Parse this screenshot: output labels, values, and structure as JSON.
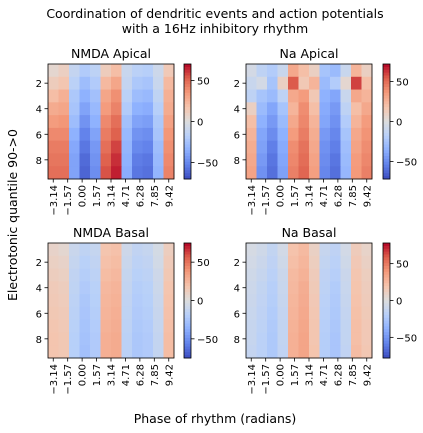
{
  "figure": {
    "suptitle_line1": "Coordination of dendritic events and action potentials",
    "suptitle_line2": "with a 16Hz inhibitory rhythm",
    "ylabel": "Electrotonic quantile 90->0",
    "xlabel": "Phase of rhythm (radians)"
  },
  "chart_data": [
    {
      "type": "heatmap",
      "title": "NMDA Apical",
      "colormap": "coolwarm",
      "x_tick_labels": [
        "−3.14",
        "−1.57",
        "0.00",
        "1.57",
        "3.14",
        "4.71",
        "6.28",
        "7.85",
        "9.42"
      ],
      "y_tick_labels": [
        "2",
        "4",
        "6",
        "8"
      ],
      "y_tick_rows": [
        1,
        3,
        5,
        7
      ],
      "colorbar_ticks": [
        50,
        0,
        -50
      ],
      "colorbar_tick_labels": [
        "50",
        "0",
        "−50"
      ],
      "vmin": -70,
      "vmax": 70,
      "rows": 9,
      "cols": 12,
      "values": [
        [
          5,
          10,
          -12,
          -20,
          -15,
          12,
          20,
          -10,
          -16,
          -18,
          -8,
          14
        ],
        [
          12,
          16,
          -16,
          -28,
          -20,
          22,
          30,
          -12,
          -22,
          -24,
          -10,
          22
        ],
        [
          20,
          26,
          -22,
          -34,
          -26,
          30,
          38,
          -16,
          -28,
          -30,
          -14,
          26
        ],
        [
          28,
          30,
          -24,
          -40,
          -30,
          34,
          42,
          -20,
          -34,
          -36,
          -18,
          28
        ],
        [
          34,
          36,
          -28,
          -46,
          -34,
          40,
          48,
          -26,
          -40,
          -42,
          -22,
          32
        ],
        [
          40,
          40,
          -34,
          -52,
          -40,
          44,
          52,
          -30,
          -46,
          -48,
          -24,
          36
        ],
        [
          44,
          44,
          -38,
          -56,
          -44,
          48,
          58,
          -32,
          -50,
          -52,
          -28,
          38
        ],
        [
          46,
          46,
          -40,
          -60,
          -46,
          52,
          62,
          -34,
          -54,
          -56,
          -30,
          40
        ],
        [
          48,
          48,
          -40,
          -62,
          -48,
          55,
          65,
          -36,
          -56,
          -58,
          -32,
          42
        ]
      ]
    },
    {
      "type": "heatmap",
      "title": "Na Apical",
      "colormap": "coolwarm",
      "x_tick_labels": [
        "−3.14",
        "−1.57",
        "0.00",
        "1.57",
        "3.14",
        "4.71",
        "6.28",
        "7.85",
        "9.42"
      ],
      "y_tick_labels": [
        "2",
        "4",
        "6",
        "8"
      ],
      "y_tick_rows": [
        1,
        3,
        5,
        7
      ],
      "colorbar_ticks": [
        50,
        0,
        -50
      ],
      "colorbar_tick_labels": [
        "50",
        "0",
        "−50"
      ],
      "vmin": -72,
      "vmax": 72,
      "rows": 9,
      "cols": 12,
      "values": [
        [
          -5,
          -15,
          -20,
          -10,
          30,
          20,
          10,
          -25,
          -30,
          -10,
          25,
          10
        ],
        [
          -10,
          -5,
          -25,
          10,
          55,
          15,
          25,
          -30,
          -20,
          5,
          60,
          20
        ],
        [
          -15,
          -25,
          -30,
          -15,
          30,
          35,
          15,
          -35,
          -40,
          -10,
          30,
          25
        ],
        [
          10,
          -30,
          -40,
          -25,
          25,
          40,
          20,
          -38,
          -45,
          -15,
          20,
          30
        ],
        [
          20,
          -35,
          -45,
          -30,
          30,
          42,
          25,
          -40,
          -48,
          -20,
          25,
          35
        ],
        [
          25,
          -40,
          -50,
          -35,
          35,
          45,
          28,
          -45,
          -52,
          -25,
          30,
          38
        ],
        [
          28,
          -42,
          -55,
          -38,
          40,
          48,
          30,
          -48,
          -55,
          -28,
          32,
          40
        ],
        [
          30,
          -45,
          -58,
          -40,
          42,
          50,
          32,
          -50,
          -58,
          -30,
          35,
          42
        ],
        [
          32,
          -48,
          -60,
          -42,
          44,
          52,
          34,
          -52,
          -60,
          -32,
          36,
          44
        ]
      ]
    },
    {
      "type": "heatmap",
      "title": "NMDA Basal",
      "colormap": "coolwarm",
      "x_tick_labels": [
        "−3.14",
        "−1.57",
        "0.00",
        "1.57",
        "3.14",
        "4.71",
        "6.28",
        "7.85",
        "9.42"
      ],
      "y_tick_labels": [
        "2",
        "4",
        "6",
        "8"
      ],
      "y_tick_rows": [
        1,
        3,
        5,
        7
      ],
      "colorbar_ticks": [
        50,
        0,
        -50
      ],
      "colorbar_tick_labels": [
        "50",
        "0",
        "−50"
      ],
      "vmin": -75,
      "vmax": 75,
      "rows": 9,
      "cols": 12,
      "values": [
        [
          8,
          5,
          -10,
          -15,
          -12,
          18,
          20,
          -8,
          -14,
          -12,
          -5,
          12
        ],
        [
          10,
          8,
          -12,
          -18,
          -14,
          20,
          22,
          -10,
          -16,
          -14,
          -6,
          14
        ],
        [
          12,
          10,
          -14,
          -20,
          -16,
          22,
          24,
          -12,
          -18,
          -16,
          -8,
          16
        ],
        [
          14,
          12,
          -15,
          -22,
          -18,
          24,
          26,
          -13,
          -20,
          -18,
          -9,
          18
        ],
        [
          15,
          13,
          -16,
          -24,
          -19,
          25,
          27,
          -14,
          -21,
          -19,
          -10,
          19
        ],
        [
          16,
          14,
          -17,
          -25,
          -20,
          26,
          28,
          -15,
          -22,
          -20,
          -11,
          20
        ],
        [
          17,
          15,
          -18,
          -26,
          -21,
          27,
          29,
          -16,
          -23,
          -21,
          -12,
          21
        ],
        [
          18,
          16,
          -19,
          -27,
          -22,
          28,
          30,
          -17,
          -24,
          -22,
          -13,
          22
        ],
        [
          18,
          16,
          -19,
          -28,
          -22,
          28,
          30,
          -17,
          -24,
          -22,
          -13,
          22
        ]
      ]
    },
    {
      "type": "heatmap",
      "title": "Na Basal",
      "colormap": "coolwarm",
      "x_tick_labels": [
        "−3.14",
        "−1.57",
        "0.00",
        "1.57",
        "3.14",
        "4.71",
        "6.28",
        "7.85",
        "9.42"
      ],
      "y_tick_labels": [
        "2",
        "4",
        "6",
        "8"
      ],
      "y_tick_rows": [
        1,
        3,
        5,
        7
      ],
      "colorbar_ticks": [
        50,
        0,
        -50
      ],
      "colorbar_tick_labels": [
        "50",
        "0",
        "−50"
      ],
      "vmin": -78,
      "vmax": 78,
      "rows": 9,
      "cols": 12,
      "values": [
        [
          -4,
          -8,
          -14,
          -6,
          20,
          24,
          10,
          -12,
          -16,
          -6,
          14,
          8
        ],
        [
          -6,
          -10,
          -16,
          -8,
          22,
          26,
          12,
          -14,
          -18,
          -8,
          16,
          10
        ],
        [
          -8,
          -12,
          -18,
          -10,
          24,
          28,
          14,
          -16,
          -20,
          -10,
          18,
          12
        ],
        [
          -9,
          -14,
          -20,
          -11,
          25,
          30,
          15,
          -17,
          -22,
          -11,
          19,
          13
        ],
        [
          -10,
          -15,
          -21,
          -12,
          26,
          31,
          16,
          -18,
          -23,
          -12,
          20,
          14
        ],
        [
          -11,
          -16,
          -22,
          -13,
          27,
          32,
          17,
          -19,
          -24,
          -13,
          21,
          15
        ],
        [
          -12,
          -17,
          -23,
          -14,
          28,
          33,
          18,
          -20,
          -25,
          -14,
          22,
          16
        ],
        [
          -12,
          -18,
          -24,
          -14,
          29,
          34,
          18,
          -21,
          -26,
          -14,
          22,
          16
        ],
        [
          -13,
          -18,
          -24,
          -15,
          29,
          34,
          19,
          -21,
          -26,
          -15,
          23,
          17
        ]
      ]
    }
  ]
}
